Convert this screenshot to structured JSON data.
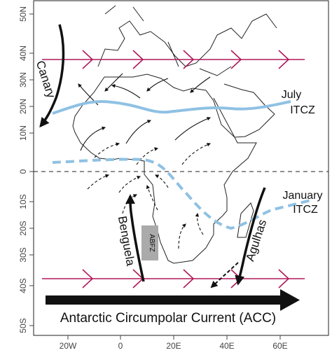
{
  "axes": {
    "y_labels": [
      "50N",
      "40N",
      "30N",
      "20N",
      "10N",
      "0",
      "10S",
      "20S",
      "30S",
      "40S",
      "50S"
    ],
    "x_labels": [
      "20W",
      "0",
      "20E",
      "40E",
      "60E"
    ]
  },
  "labels": {
    "canary": "Canary",
    "july": "July",
    "july_itcz": "ITCZ",
    "january": "January",
    "january_itcz": "ITCZ",
    "benguela": "Benguela",
    "abfz": "ABFZ",
    "agulhas": "Agulhas",
    "acc": "Antarctic Circumpolar Current  (ACC)"
  }
}
